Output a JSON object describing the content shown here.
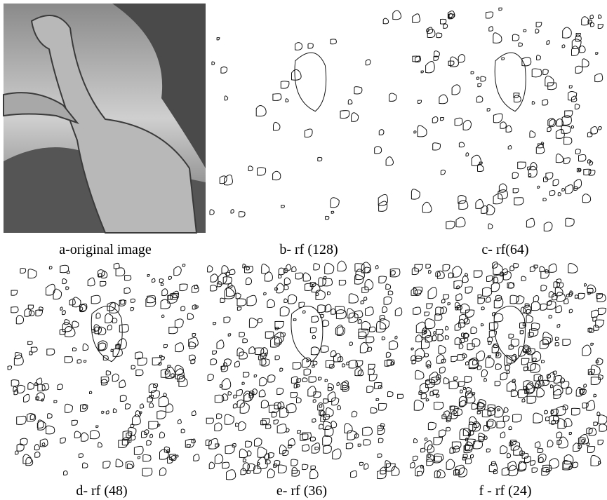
{
  "figure": {
    "panels": [
      {
        "caption": "a-original image"
      },
      {
        "caption": "b- rf (128)"
      },
      {
        "caption": "c- rf(64)"
      },
      {
        "caption": "d- rf (48)"
      },
      {
        "caption": "e- rf (36)"
      },
      {
        "caption": "f - rf (24)"
      }
    ]
  }
}
